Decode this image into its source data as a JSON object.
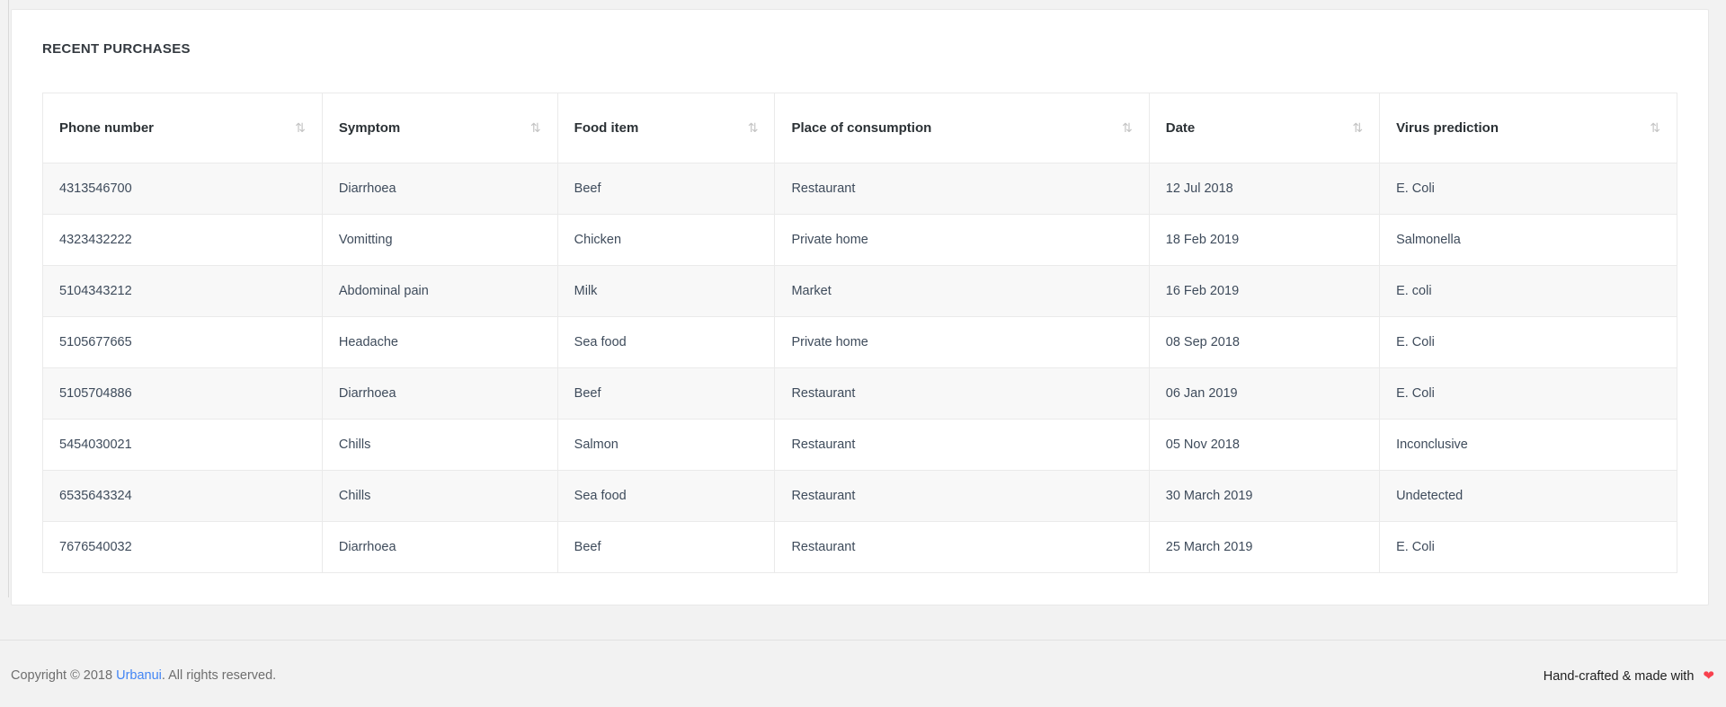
{
  "card": {
    "title": "RECENT PURCHASES"
  },
  "table": {
    "columns": [
      {
        "key": "phone_number",
        "label": "Phone number",
        "sort_icon": "⇅"
      },
      {
        "key": "symptom",
        "label": "Symptom",
        "sort_icon": "⇅"
      },
      {
        "key": "food_item",
        "label": "Food item",
        "sort_icon": "⇅"
      },
      {
        "key": "place_of_consumption",
        "label": "Place of consumption",
        "sort_icon": "⇅"
      },
      {
        "key": "date",
        "label": "Date",
        "sort_icon": "⇅"
      },
      {
        "key": "virus_prediction",
        "label": "Virus prediction",
        "sort_icon": "⇅"
      }
    ],
    "rows": [
      {
        "phone_number": "4313546700",
        "symptom": "Diarrhoea",
        "food_item": "Beef",
        "place_of_consumption": "Restaurant",
        "date": "12 Jul 2018",
        "virus_prediction": "E. Coli"
      },
      {
        "phone_number": "4323432222",
        "symptom": "Vomitting",
        "food_item": "Chicken",
        "place_of_consumption": "Private home",
        "date": "18 Feb 2019",
        "virus_prediction": "Salmonella"
      },
      {
        "phone_number": "5104343212",
        "symptom": "Abdominal pain",
        "food_item": "Milk",
        "place_of_consumption": "Market",
        "date": "16 Feb 2019",
        "virus_prediction": "E. coli"
      },
      {
        "phone_number": "5105677665",
        "symptom": "Headache",
        "food_item": "Sea food",
        "place_of_consumption": "Private home",
        "date": "08 Sep 2018",
        "virus_prediction": "E. Coli"
      },
      {
        "phone_number": "5105704886",
        "symptom": "Diarrhoea",
        "food_item": "Beef",
        "place_of_consumption": "Restaurant",
        "date": "06 Jan 2019",
        "virus_prediction": "E. Coli"
      },
      {
        "phone_number": "5454030021",
        "symptom": "Chills",
        "food_item": "Salmon",
        "place_of_consumption": "Restaurant",
        "date": "05 Nov 2018",
        "virus_prediction": "Inconclusive"
      },
      {
        "phone_number": "6535643324",
        "symptom": "Chills",
        "food_item": "Sea food",
        "place_of_consumption": "Restaurant",
        "date": "30 March 2019",
        "virus_prediction": "Undetected"
      },
      {
        "phone_number": "7676540032",
        "symptom": "Diarrhoea",
        "food_item": "Beef",
        "place_of_consumption": "Restaurant",
        "date": "25 March 2019",
        "virus_prediction": "E. Coli"
      }
    ]
  },
  "footer": {
    "copyright_prefix": "Copyright © 2018 ",
    "brand": "Urbanui",
    "copyright_suffix": ". All rights reserved.",
    "tagline_text": "Hand-crafted & made with ",
    "heart_icon": "❤"
  },
  "colors": {
    "page_background": "#f2f2f2",
    "card_background": "#ffffff",
    "row_stripe": "#f8f8f8",
    "cell_text": "#3e4b5b",
    "link_blue": "#4285f4",
    "heart_red": "#f8414e"
  }
}
